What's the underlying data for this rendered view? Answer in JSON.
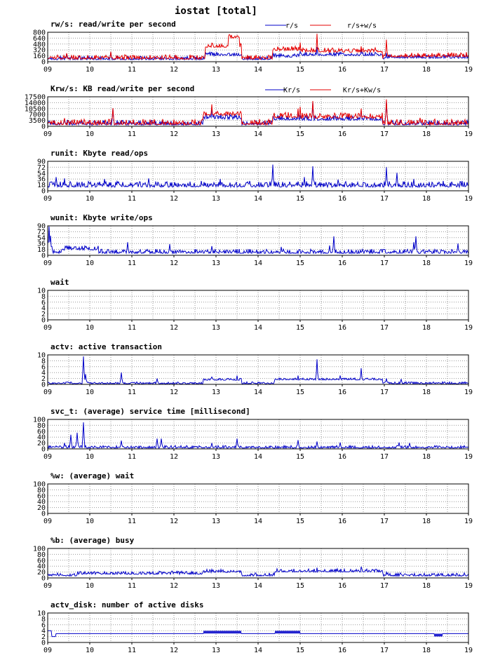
{
  "page_title": "iostat [total]",
  "chart_data": [
    {
      "type": "line",
      "title": "rw/s: read/write per second",
      "x_ticks": [
        "09",
        "10",
        "11",
        "12",
        "13",
        "14",
        "15",
        "16",
        "17",
        "18",
        "19"
      ],
      "y_ticks": [
        0,
        160,
        320,
        480,
        640,
        800
      ],
      "ylim": [
        0,
        800
      ],
      "grid": true,
      "legend_position": "top-right",
      "series": [
        {
          "name": "r/s",
          "color": "#0000c8",
          "baseline": 70,
          "noise": 45,
          "bumps": [
            [
              12.75,
              13.6,
              110
            ],
            [
              14.35,
              15.0,
              70
            ],
            [
              15.0,
              16.95,
              110
            ],
            [
              17.0,
              19.0,
              40
            ]
          ],
          "spikes": [
            [
              9.45,
              220
            ],
            [
              10.5,
              260
            ],
            [
              12.9,
              210
            ],
            [
              15.4,
              400
            ],
            [
              16.45,
              330
            ],
            [
              17.05,
              240
            ]
          ]
        },
        {
          "name": "r/s+w/s",
          "color": "#e60000",
          "baseline": 90,
          "noise": 55,
          "bumps": [
            [
              12.75,
              13.6,
              320
            ],
            [
              13.3,
              13.55,
              250
            ],
            [
              14.35,
              15.0,
              230
            ],
            [
              15.0,
              16.95,
              190
            ],
            [
              17.0,
              19.0,
              60
            ]
          ],
          "spikes": [
            [
              9.45,
              230
            ],
            [
              10.5,
              270
            ],
            [
              12.9,
              430
            ],
            [
              13.55,
              430
            ],
            [
              15.4,
              760
            ],
            [
              16.45,
              420
            ],
            [
              17.05,
              600
            ],
            [
              18.95,
              260
            ]
          ]
        }
      ]
    },
    {
      "type": "line",
      "title": "Krw/s: KB read/write per second",
      "x_ticks": [
        "09",
        "10",
        "11",
        "12",
        "13",
        "14",
        "15",
        "16",
        "17",
        "18",
        "19"
      ],
      "y_ticks": [
        0,
        3500,
        7000,
        10500,
        14000,
        17500
      ],
      "ylim": [
        0,
        17500
      ],
      "grid": true,
      "legend_position": "top-right",
      "series": [
        {
          "name": "Kr/s",
          "color": "#0000c8",
          "baseline": 1200,
          "noise": 1300,
          "bumps": [
            [
              12.7,
              13.6,
              3500
            ],
            [
              14.35,
              15.0,
              3000
            ],
            [
              15.0,
              16.95,
              2800
            ]
          ],
          "spikes": [
            [
              9.4,
              4500
            ],
            [
              10.55,
              10500
            ],
            [
              12.9,
              11500
            ],
            [
              14.95,
              9500
            ],
            [
              15.3,
              14500
            ],
            [
              16.45,
              9500
            ],
            [
              17.05,
              15000
            ],
            [
              17.85,
              4500
            ]
          ]
        },
        {
          "name": "Kr/s+Kw/s",
          "color": "#e60000",
          "baseline": 1500,
          "noise": 1500,
          "bumps": [
            [
              12.7,
              13.6,
              5500
            ],
            [
              14.35,
              15.0,
              4200
            ],
            [
              15.0,
              16.95,
              3800
            ]
          ],
          "spikes": [
            [
              9.4,
              4800
            ],
            [
              10.55,
              10800
            ],
            [
              12.9,
              13000
            ],
            [
              14.95,
              10500
            ],
            [
              15.3,
              15000
            ],
            [
              16.45,
              10500
            ],
            [
              17.05,
              16000
            ],
            [
              17.85,
              5000
            ]
          ]
        }
      ]
    },
    {
      "type": "line",
      "title": "runit: Kbyte read/ops",
      "x_ticks": [
        "09",
        "10",
        "11",
        "12",
        "13",
        "14",
        "15",
        "16",
        "17",
        "18",
        "19"
      ],
      "y_ticks": [
        0,
        18,
        36,
        54,
        72,
        90
      ],
      "ylim": [
        0,
        90
      ],
      "grid": true,
      "series": [
        {
          "name": "",
          "color": "#0000c8",
          "baseline": 14,
          "noise": 8,
          "bumps": [],
          "spikes": [
            [
              9.2,
              42
            ],
            [
              9.4,
              38
            ],
            [
              10.35,
              36
            ],
            [
              11.4,
              38
            ],
            [
              12.65,
              30
            ],
            [
              13.1,
              36
            ],
            [
              13.8,
              30
            ],
            [
              14.35,
              80
            ],
            [
              15.1,
              42
            ],
            [
              15.3,
              75
            ],
            [
              15.9,
              34
            ],
            [
              17.05,
              72
            ],
            [
              17.3,
              55
            ],
            [
              17.7,
              36
            ],
            [
              18.4,
              30
            ],
            [
              18.85,
              30
            ]
          ]
        }
      ]
    },
    {
      "type": "line",
      "title": "wunit: Kbyte write/ops",
      "x_ticks": [
        "09",
        "10",
        "11",
        "12",
        "13",
        "14",
        "15",
        "16",
        "17",
        "18",
        "19"
      ],
      "y_ticks": [
        0,
        18,
        36,
        54,
        72,
        90
      ],
      "ylim": [
        0,
        90
      ],
      "grid": true,
      "series": [
        {
          "name": "",
          "color": "#0000c8",
          "baseline": 8,
          "noise": 6,
          "bumps": [
            [
              9.35,
              10.2,
              10
            ]
          ],
          "spikes": [
            [
              9.03,
              88
            ],
            [
              9.07,
              60
            ],
            [
              10.9,
              40
            ],
            [
              11.9,
              34
            ],
            [
              12.9,
              28
            ],
            [
              14.55,
              26
            ],
            [
              15.7,
              30
            ],
            [
              15.8,
              58
            ],
            [
              17.7,
              40
            ],
            [
              17.75,
              58
            ],
            [
              18.75,
              36
            ]
          ]
        }
      ]
    },
    {
      "type": "line",
      "title": "wait",
      "x_ticks": [
        "09",
        "10",
        "11",
        "12",
        "13",
        "14",
        "15",
        "16",
        "17",
        "18",
        "19"
      ],
      "y_ticks": [
        0,
        2,
        4,
        6,
        8,
        10
      ],
      "ylim": [
        0,
        10
      ],
      "grid": true,
      "series": [
        {
          "name": "",
          "color": "#0000c8",
          "baseline": 0,
          "noise": 0,
          "bumps": [],
          "spikes": []
        }
      ]
    },
    {
      "type": "line",
      "title": "actv: active transaction",
      "x_ticks": [
        "09",
        "10",
        "11",
        "12",
        "13",
        "14",
        "15",
        "16",
        "17",
        "18",
        "19"
      ],
      "y_ticks": [
        0,
        2,
        4,
        6,
        8,
        10
      ],
      "ylim": [
        0,
        10
      ],
      "grid": true,
      "series": [
        {
          "name": "",
          "color": "#0000c8",
          "baseline": 0.3,
          "noise": 0.3,
          "bumps": [
            [
              12.7,
              13.6,
              1.2
            ],
            [
              14.4,
              16.95,
              1.3
            ]
          ],
          "spikes": [
            [
              9.85,
              9.5
            ],
            [
              9.9,
              3.5
            ],
            [
              10.75,
              4.0
            ],
            [
              11.6,
              2.0
            ],
            [
              12.9,
              2.5
            ],
            [
              13.5,
              3.0
            ],
            [
              14.95,
              3.0
            ],
            [
              15.4,
              8.5
            ],
            [
              15.95,
              3.0
            ],
            [
              16.45,
              5.5
            ],
            [
              17.05,
              2.0
            ],
            [
              17.4,
              1.8
            ]
          ]
        }
      ]
    },
    {
      "type": "line",
      "title": "svc_t: (average) service time [millisecond]",
      "x_ticks": [
        "09",
        "10",
        "11",
        "12",
        "13",
        "14",
        "15",
        "16",
        "17",
        "18",
        "19"
      ],
      "y_ticks": [
        0,
        20,
        40,
        60,
        80,
        100
      ],
      "ylim": [
        0,
        100
      ],
      "grid": true,
      "series": [
        {
          "name": "",
          "color": "#0000c8",
          "baseline": 4,
          "noise": 4,
          "bumps": [],
          "spikes": [
            [
              9.4,
              20
            ],
            [
              9.55,
              48
            ],
            [
              9.7,
              55
            ],
            [
              9.85,
              90
            ],
            [
              10.75,
              28
            ],
            [
              11.6,
              35
            ],
            [
              11.7,
              35
            ],
            [
              12.9,
              20
            ],
            [
              13.5,
              35
            ],
            [
              14.95,
              30
            ],
            [
              15.4,
              25
            ],
            [
              15.95,
              22
            ],
            [
              17.35,
              22
            ],
            [
              17.6,
              20
            ]
          ]
        }
      ]
    },
    {
      "type": "line",
      "title": "%w: (average) wait",
      "x_ticks": [
        "09",
        "10",
        "11",
        "12",
        "13",
        "14",
        "15",
        "16",
        "17",
        "18",
        "19"
      ],
      "y_ticks": [
        0,
        20,
        40,
        60,
        80,
        100
      ],
      "ylim": [
        0,
        100
      ],
      "grid": true,
      "series": [
        {
          "name": "",
          "color": "#0000c8",
          "baseline": 0,
          "noise": 0,
          "bumps": [],
          "spikes": []
        }
      ]
    },
    {
      "type": "line",
      "title": "%b: (average) busy",
      "x_ticks": [
        "09",
        "10",
        "11",
        "12",
        "13",
        "14",
        "15",
        "16",
        "17",
        "18",
        "19"
      ],
      "y_ticks": [
        0,
        20,
        40,
        60,
        80,
        100
      ],
      "ylim": [
        0,
        100
      ],
      "grid": true,
      "series": [
        {
          "name": "",
          "color": "#0000c8",
          "baseline": 8,
          "noise": 5,
          "bumps": [
            [
              9.7,
              12.7,
              6
            ],
            [
              12.7,
              13.6,
              12
            ],
            [
              14.4,
              16.95,
              14
            ]
          ],
          "spikes": [
            [
              9.85,
              18
            ],
            [
              15.4,
              35
            ],
            [
              16.45,
              38
            ],
            [
              17.05,
              20
            ]
          ]
        }
      ]
    },
    {
      "type": "line",
      "title": "actv_disk: number of active disks",
      "x_ticks": [
        "09",
        "10",
        "11",
        "12",
        "13",
        "14",
        "15",
        "16",
        "17",
        "18",
        "19"
      ],
      "y_ticks": [
        0,
        2,
        4,
        6,
        8,
        10
      ],
      "ylim": [
        0,
        10
      ],
      "grid": true,
      "series": [
        {
          "name": "",
          "color": "#0000c8",
          "baseline": 3,
          "noise": 0,
          "bumps": [],
          "spikes": [],
          "steps": [
            [
              9.0,
              9.1,
              4
            ],
            [
              9.1,
              9.2,
              2
            ],
            [
              9.2,
              9.5,
              3
            ],
            [
              12.7,
              13.6,
              3.5
            ],
            [
              14.4,
              15.0,
              3.5
            ],
            [
              18.2,
              18.4,
              2.5
            ]
          ]
        }
      ]
    }
  ]
}
